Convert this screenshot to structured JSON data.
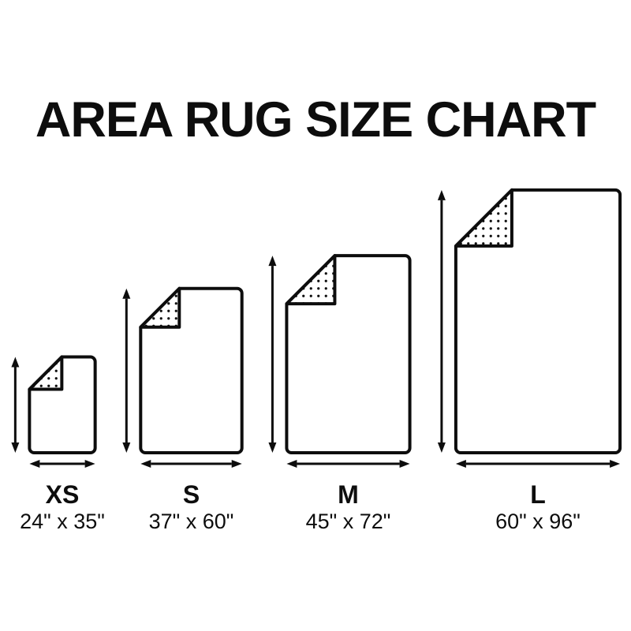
{
  "page": {
    "title": "AREA RUG SIZE CHART",
    "background_color": "#ffffff",
    "ink_color": "#0d0d0d"
  },
  "rugs": [
    {
      "id": "xs",
      "label": "XS",
      "dimensions": "24\" x 35\"",
      "width_inches": 24,
      "height_inches": 35
    },
    {
      "id": "s",
      "label": "S",
      "dimensions": "37\" x 60\"",
      "width_inches": 37,
      "height_inches": 60
    },
    {
      "id": "m",
      "label": "M",
      "dimensions": "45\" x 72\"",
      "width_inches": 45,
      "height_inches": 72
    },
    {
      "id": "l",
      "label": "L",
      "dimensions": "60\" x 96\"",
      "width_inches": 60,
      "height_inches": 96
    }
  ]
}
